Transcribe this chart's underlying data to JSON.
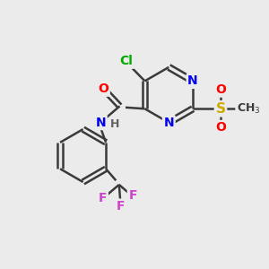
{
  "background_color": "#ebebeb",
  "bond_color": "#3a3a3a",
  "atom_colors": {
    "N": "#0000ee",
    "O": "#ff0000",
    "Cl": "#00aa00",
    "S": "#ccaa00",
    "F": "#cc44cc",
    "C": "#3a3a3a",
    "H": "#606060"
  },
  "figsize": [
    3.0,
    3.0
  ],
  "dpi": 100
}
